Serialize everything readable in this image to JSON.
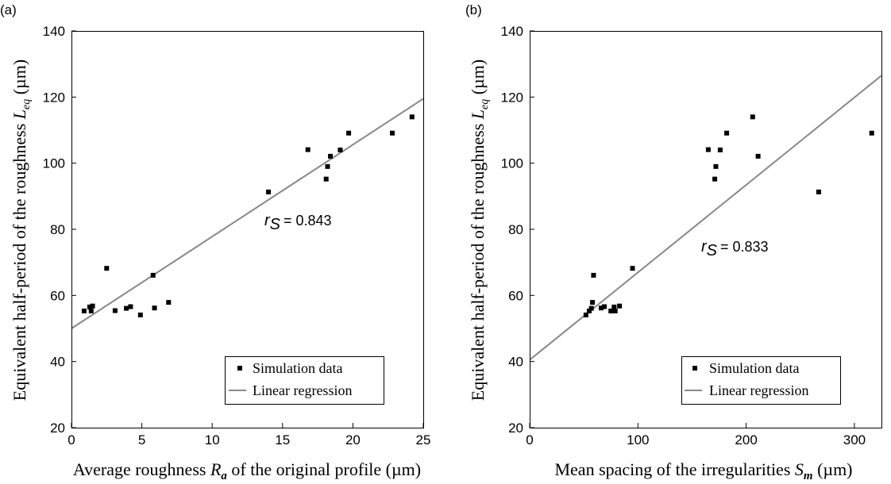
{
  "chart_data": [
    {
      "panel_label": "(a)",
      "type": "scatter",
      "xlabel_parts": [
        "Average roughness ",
        "R",
        "a",
        " of the original profile (µm)"
      ],
      "ylabel_parts": [
        "Equivalent half-period of the roughness ",
        "L",
        "eq",
        " (µm)"
      ],
      "xlim": [
        0,
        25
      ],
      "ylim": [
        20,
        140
      ],
      "xticks": [
        "0",
        "5",
        "10",
        "15",
        "20",
        "25"
      ],
      "yticks": [
        "20",
        "40",
        "60",
        "80",
        "100",
        "120",
        "140"
      ],
      "legend": {
        "placement": "bottom-right",
        "scatter_label": "Simulation data",
        "line_label": "Linear regression"
      },
      "annotation": {
        "symbol": "r",
        "subscript": "S",
        "text": "= 0.843"
      },
      "regression": {
        "x": [
          0,
          25
        ],
        "y": [
          50,
          119.5
        ],
        "color": "#888888"
      },
      "points": [
        [
          0.9,
          55.3
        ],
        [
          1.3,
          56.5
        ],
        [
          1.4,
          55.3
        ],
        [
          1.5,
          56.8
        ],
        [
          2.5,
          68.2
        ],
        [
          3.1,
          55.4
        ],
        [
          3.9,
          56.1
        ],
        [
          4.2,
          56.6
        ],
        [
          4.9,
          54.1
        ],
        [
          5.8,
          66.1
        ],
        [
          5.9,
          56.2
        ],
        [
          6.9,
          57.9
        ],
        [
          14.0,
          91.3
        ],
        [
          16.8,
          104.1
        ],
        [
          18.1,
          95.2
        ],
        [
          18.2,
          99.0
        ],
        [
          18.4,
          102.1
        ],
        [
          19.1,
          104.0
        ],
        [
          19.7,
          109.1
        ],
        [
          22.8,
          109.1
        ],
        [
          24.2,
          114.0
        ]
      ]
    },
    {
      "panel_label": "(b)",
      "type": "scatter",
      "xlabel_parts": [
        "Mean spacing of the irregularities ",
        "S",
        "m",
        " (µm)"
      ],
      "ylabel_parts": [
        "Equivalent half-period of the roughness ",
        "L",
        "eq",
        " (µm)"
      ],
      "xlim": [
        0,
        325
      ],
      "ylim": [
        20,
        140
      ],
      "xticks": [
        "0",
        "100",
        "200",
        "300"
      ],
      "xtick_values": [
        0,
        100,
        200,
        300
      ],
      "yticks": [
        "20",
        "40",
        "60",
        "80",
        "100",
        "120",
        "140"
      ],
      "legend": {
        "placement": "bottom-right",
        "scatter_label": "Simulation data",
        "line_label": "Linear regression"
      },
      "annotation": {
        "symbol": "r",
        "subscript": "S",
        "text": "= 0.833"
      },
      "regression": {
        "x": [
          0,
          325
        ],
        "y": [
          40.5,
          126.5
        ],
        "color": "#888888"
      },
      "points": [
        [
          52,
          54.1
        ],
        [
          55,
          55.3
        ],
        [
          57,
          56.1
        ],
        [
          58,
          57.9
        ],
        [
          59,
          66.1
        ],
        [
          66,
          56.2
        ],
        [
          69,
          56.6
        ],
        [
          75,
          55.3
        ],
        [
          78,
          56.5
        ],
        [
          79,
          55.3
        ],
        [
          83,
          56.8
        ],
        [
          95,
          68.2
        ],
        [
          165,
          104.1
        ],
        [
          171,
          95.2
        ],
        [
          172,
          99.0
        ],
        [
          176,
          104.0
        ],
        [
          182,
          109.1
        ],
        [
          206,
          114.0
        ],
        [
          211,
          102.1
        ],
        [
          267,
          91.3
        ],
        [
          316,
          109.1
        ]
      ]
    }
  ]
}
